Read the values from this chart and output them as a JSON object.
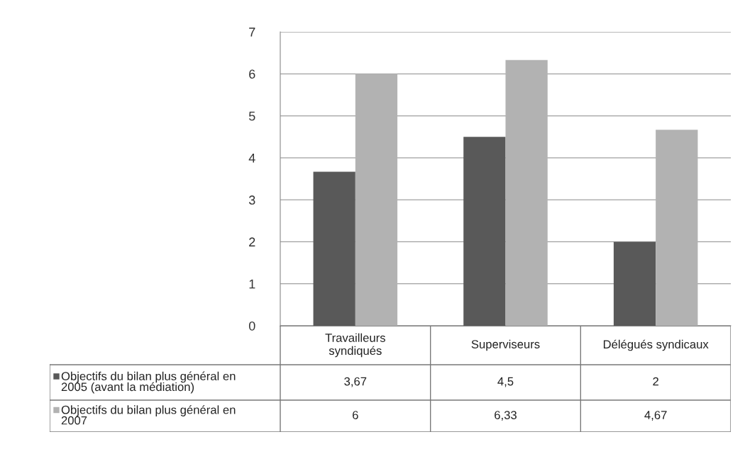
{
  "chart_data": {
    "type": "bar",
    "categories": [
      "Travailleurs\nsyndiqués",
      "Superviseurs",
      "Délégués syndicaux"
    ],
    "series": [
      {
        "name": "Objectifs du bilan plus général en\n2005 (avant la médiation)",
        "color": "#595959",
        "values": [
          3.67,
          4.5,
          2
        ],
        "value_labels": [
          "3,67",
          "4,5",
          "2"
        ]
      },
      {
        "name": "Objectifs du bilan plus général en\n2007",
        "color": "#b2b2b2",
        "values": [
          6,
          6.33,
          4.67
        ],
        "value_labels": [
          "6",
          "6,33",
          "4,67"
        ]
      }
    ],
    "ylim": [
      0,
      7
    ],
    "yticks": [
      0,
      1,
      2,
      3,
      4,
      5,
      6,
      7
    ],
    "grid": "y",
    "legend": "bottom"
  }
}
